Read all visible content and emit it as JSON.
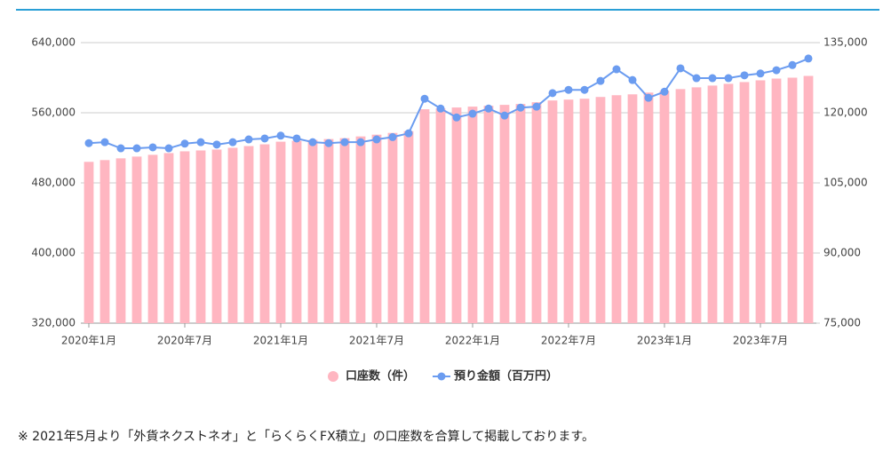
{
  "chart_data": {
    "type": "bar",
    "categories": [
      "2020年1月",
      null,
      null,
      null,
      null,
      null,
      "2020年7月",
      null,
      null,
      null,
      null,
      null,
      "2021年1月",
      null,
      null,
      null,
      null,
      null,
      "2021年7月",
      null,
      null,
      null,
      null,
      null,
      "2022年1月",
      null,
      null,
      null,
      null,
      null,
      "2022年7月",
      null,
      null,
      null,
      null,
      null,
      "2023年1月",
      null,
      null,
      null,
      null,
      null,
      "2023年7月",
      null,
      null,
      null
    ],
    "series": [
      {
        "name": "口座数（件）",
        "type": "bar",
        "color": "#ffb6c1",
        "values": [
          504000,
          506000,
          508000,
          510000,
          512000,
          514000,
          516000,
          517000,
          518000,
          520000,
          522000,
          524000,
          527000,
          528000,
          529000,
          530000,
          531000,
          533000,
          535000,
          537000,
          539000,
          564000,
          565000,
          566000,
          567000,
          568000,
          569000,
          570000,
          572000,
          574000,
          575000,
          576000,
          578000,
          580000,
          581000,
          583000,
          585000,
          587000,
          589000,
          591000,
          593000,
          595000,
          597000,
          599000,
          600000,
          602000
        ]
      },
      {
        "name": "預り金額（百万円）",
        "type": "line",
        "axis": "y2",
        "color": "#6b9cf0",
        "values": [
          113500,
          113700,
          112400,
          112400,
          112600,
          112400,
          113400,
          113700,
          113200,
          113700,
          114300,
          114500,
          115100,
          114500,
          113700,
          113500,
          113700,
          113700,
          114300,
          114800,
          115600,
          123000,
          120900,
          119000,
          119800,
          120900,
          119400,
          121100,
          121300,
          124200,
          124900,
          124900,
          126800,
          129300,
          127000,
          123200,
          124500,
          129500,
          127400,
          127400,
          127400,
          128000,
          128400,
          129100,
          130200,
          131600
        ]
      }
    ],
    "ylim": [
      320000,
      640000
    ],
    "yticks": [
      {
        "value": 320000,
        "label": "320,000"
      },
      {
        "value": 400000,
        "label": "400,000"
      },
      {
        "value": 480000,
        "label": "480,000"
      },
      {
        "value": 560000,
        "label": "560,000"
      },
      {
        "value": 640000,
        "label": "640,000"
      }
    ],
    "y2lim": [
      75000,
      135000
    ],
    "y2ticks": [
      {
        "value": 75000,
        "label": "75,000"
      },
      {
        "value": 90000,
        "label": "90,000"
      },
      {
        "value": 105000,
        "label": "105,000"
      },
      {
        "value": 120000,
        "label": "120,000"
      },
      {
        "value": 135000,
        "label": "135,000"
      }
    ],
    "grid": true,
    "legend": "bottom"
  },
  "note": "※ 2021年5月より「外貨ネクストネオ」と「らくらくFX積立」の口座数を合算して掲載しております。"
}
